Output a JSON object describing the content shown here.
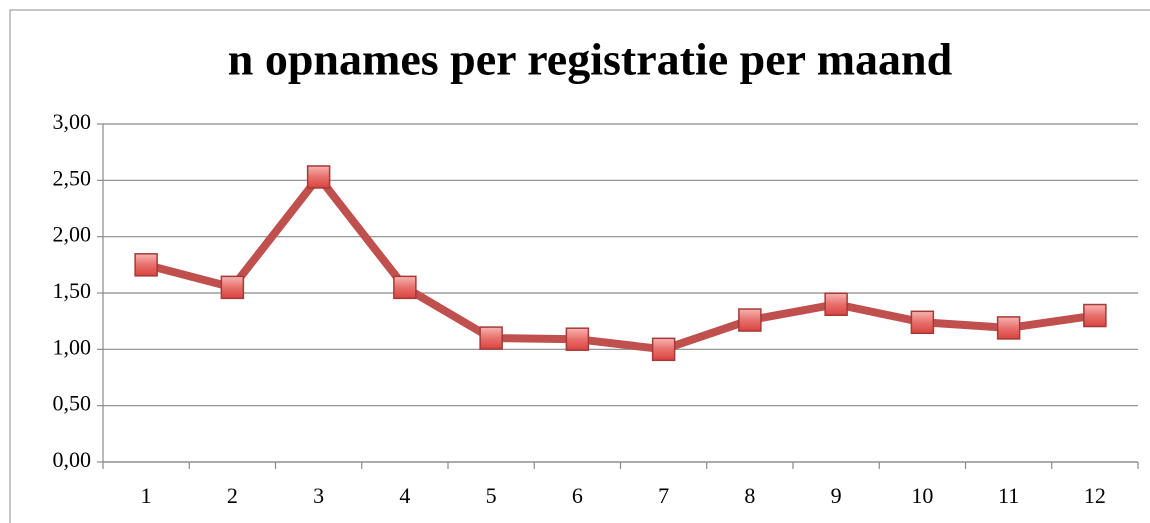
{
  "chart_data": {
    "type": "line",
    "title": "n opnames per registratie per maand",
    "categories": [
      "1",
      "2",
      "3",
      "4",
      "5",
      "6",
      "7",
      "8",
      "9",
      "10",
      "11",
      "12"
    ],
    "series": [
      {
        "name": "n opnames per registratie",
        "color": "#c0504d",
        "values": [
          1.75,
          1.55,
          2.53,
          1.55,
          1.1,
          1.09,
          1.0,
          1.26,
          1.4,
          1.24,
          1.19,
          1.3
        ]
      }
    ],
    "ylim": [
      0,
      3
    ],
    "yticks": [
      {
        "value": 0,
        "label": "0,00"
      },
      {
        "value": 0.5,
        "label": "0,50"
      },
      {
        "value": 1,
        "label": "1,00"
      },
      {
        "value": 1.5,
        "label": "1,50"
      },
      {
        "value": 2,
        "label": "2,00"
      },
      {
        "value": 2.5,
        "label": "2,50"
      },
      {
        "value": 3,
        "label": "3,00"
      }
    ],
    "grid": true
  }
}
